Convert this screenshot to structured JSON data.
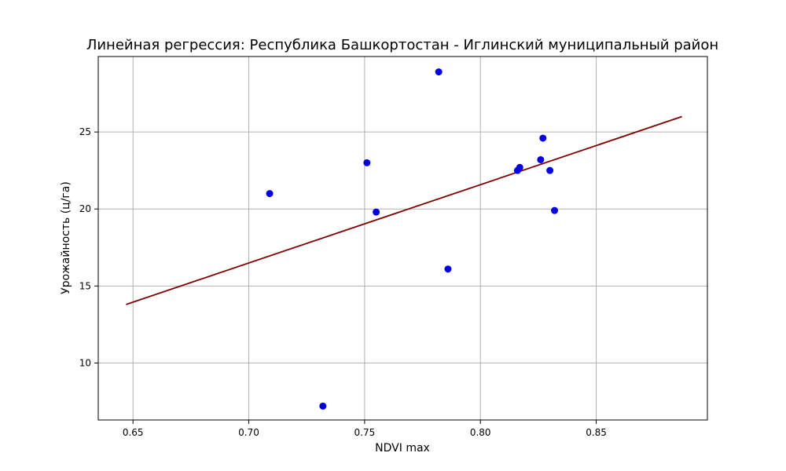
{
  "chart_data": {
    "type": "scatter",
    "title": "Линейная регрессия: Республика Башкортостан - Иглинский муниципальный район",
    "xlabel": "NDVI max",
    "ylabel": "Урожайность (ц/га)",
    "xlim": [
      0.635,
      0.898
    ],
    "ylim": [
      6.3,
      29.9
    ],
    "x_ticks": [
      0.65,
      0.7,
      0.75,
      0.8,
      0.85
    ],
    "x_tick_labels": [
      "0.65",
      "0.70",
      "0.75",
      "0.80",
      "0.85"
    ],
    "y_ticks": [
      10,
      15,
      20,
      25
    ],
    "y_tick_labels": [
      "10",
      "15",
      "20",
      "25"
    ],
    "grid": true,
    "points": [
      {
        "x": 0.709,
        "y": 21.0
      },
      {
        "x": 0.732,
        "y": 7.2
      },
      {
        "x": 0.751,
        "y": 23.0
      },
      {
        "x": 0.755,
        "y": 19.8
      },
      {
        "x": 0.782,
        "y": 28.9
      },
      {
        "x": 0.786,
        "y": 16.1
      },
      {
        "x": 0.816,
        "y": 22.5
      },
      {
        "x": 0.817,
        "y": 22.7
      },
      {
        "x": 0.826,
        "y": 23.2
      },
      {
        "x": 0.827,
        "y": 24.6
      },
      {
        "x": 0.83,
        "y": 22.5
      },
      {
        "x": 0.832,
        "y": 19.9
      }
    ],
    "regression_line": {
      "x": [
        0.647,
        0.887
      ],
      "y": [
        13.8,
        26.0
      ]
    },
    "colors": {
      "points": "#0000e0",
      "line": "#800000",
      "grid": "#b0b0b0"
    }
  }
}
